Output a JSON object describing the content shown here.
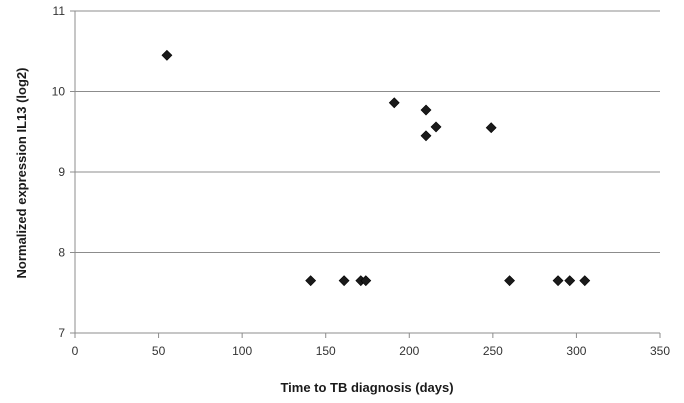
{
  "chart_data": {
    "type": "scatter",
    "title": "",
    "xlabel": "Time to TB diagnosis (days)",
    "ylabel": "Normalized expression IL13 (log2)",
    "xlim": [
      0,
      350
    ],
    "ylim": [
      7,
      11
    ],
    "x_ticks": [
      "0",
      "50",
      "100",
      "150",
      "200",
      "250",
      "300",
      "350"
    ],
    "y_ticks": [
      "7",
      "8",
      "9",
      "10",
      "11"
    ],
    "grid": "horizontal",
    "marker": "diamond",
    "marker_color": "#1a1a1a",
    "points": [
      {
        "x": 55,
        "y": 10.45
      },
      {
        "x": 141,
        "y": 7.65
      },
      {
        "x": 161,
        "y": 7.65
      },
      {
        "x": 171,
        "y": 7.65
      },
      {
        "x": 174,
        "y": 7.65
      },
      {
        "x": 191,
        "y": 9.86
      },
      {
        "x": 210,
        "y": 9.77
      },
      {
        "x": 210,
        "y": 9.45
      },
      {
        "x": 216,
        "y": 9.56
      },
      {
        "x": 249,
        "y": 9.55
      },
      {
        "x": 260,
        "y": 7.65
      },
      {
        "x": 289,
        "y": 7.65
      },
      {
        "x": 296,
        "y": 7.65
      },
      {
        "x": 305,
        "y": 7.65
      }
    ]
  }
}
